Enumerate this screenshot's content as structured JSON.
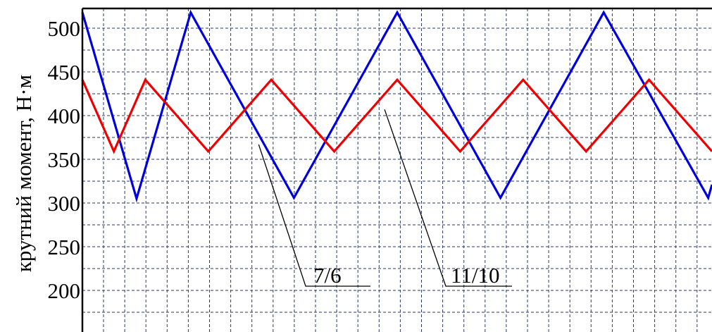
{
  "chart_data": {
    "type": "line",
    "ylabel": "крутний момент, Н·м",
    "xlabel": "",
    "title": "",
    "ylim": [
      155,
      527
    ],
    "xlim": [
      0,
      50
    ],
    "y_ticks": [
      "500",
      "450",
      "400",
      "350",
      "300",
      "250",
      "200"
    ],
    "y_tick_values": [
      500,
      450,
      400,
      350,
      300,
      250,
      200
    ],
    "grid": true,
    "series": [
      {
        "color": "#0000dd",
        "label_ref": "7/6",
        "x": [
          0,
          4.3,
          8.6,
          16.8,
          25,
          33.2,
          41.4,
          49.7,
          50
        ],
        "values": [
          518,
          305,
          518,
          306,
          518,
          306,
          518,
          306,
          321
        ]
      },
      {
        "color": "#ee0000",
        "label_ref": "11/10",
        "x": [
          0,
          2.5,
          5,
          10,
          15,
          20,
          25,
          30,
          35,
          40,
          45,
          50
        ],
        "values": [
          441,
          359,
          441,
          359,
          441,
          359,
          441,
          359,
          441,
          359,
          441,
          359
        ]
      }
    ],
    "annotations": [
      {
        "text": "7/6",
        "points_to_series": 0,
        "x": 14,
        "y": 367
      },
      {
        "text": "11/10",
        "points_to_series": 1,
        "x": 24,
        "y": 407
      }
    ]
  }
}
